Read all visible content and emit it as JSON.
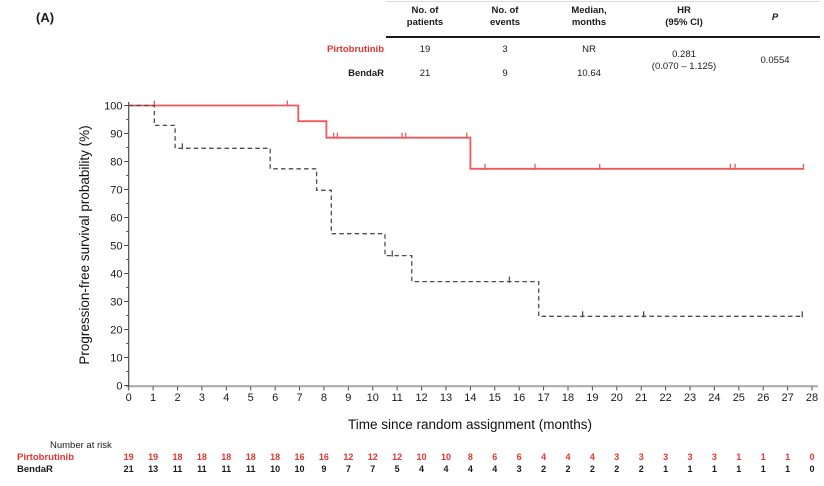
{
  "panel_label": "(A)",
  "colors": {
    "accent_red_text": "#e43434",
    "curve_red": "#f0595b",
    "curve_black": "#4d4d4d",
    "axis_gray": "#adadad",
    "tick_dark": "#4d4d4d"
  },
  "summary_table": {
    "columns": [
      {
        "line1": "No. of",
        "line2": "patients"
      },
      {
        "line1": "No. of",
        "line2": "events"
      },
      {
        "line1": "Median,",
        "line2": "months"
      },
      {
        "line1": "HR",
        "line2": "(95% CI)"
      },
      {
        "line1": "P",
        "line2": ""
      }
    ],
    "rows": [
      {
        "label": "Pirtobrutinib",
        "patients": "19",
        "events": "3",
        "median": "NR"
      },
      {
        "label": "BendaR",
        "patients": "21",
        "events": "9",
        "median": "10.64"
      }
    ],
    "hr_value": "0.281",
    "hr_ci": "(0.070 – 1.125)",
    "p_value": "0.0554"
  },
  "chart_data": {
    "type": "line",
    "subtype": "kaplan-meier-step",
    "title": "",
    "xlabel": "Time since random assignment (months)",
    "ylabel": "Progression-free survival probability (%)",
    "xlim": [
      0,
      28
    ],
    "ylim": [
      0,
      100
    ],
    "grid": false,
    "legend_position": "none",
    "x_ticks": [
      0,
      1,
      2,
      3,
      4,
      5,
      6,
      7,
      8,
      9,
      10,
      11,
      12,
      13,
      14,
      15,
      16,
      17,
      18,
      19,
      20,
      21,
      22,
      23,
      24,
      25,
      26,
      27,
      28
    ],
    "y_ticks": [
      0,
      10,
      20,
      30,
      40,
      50,
      60,
      70,
      80,
      90,
      100
    ],
    "y_minor_ticks": [
      5,
      15,
      25,
      35,
      45,
      55,
      65,
      75,
      85,
      95
    ],
    "series": [
      {
        "name": "Pirtobrutinib",
        "color": "#f0595b",
        "style": "solid",
        "steps": [
          [
            0,
            100
          ],
          [
            6.95,
            100
          ],
          [
            6.95,
            94.4
          ],
          [
            8.1,
            94.4
          ],
          [
            8.1,
            88.5
          ],
          [
            14.0,
            88.5
          ],
          [
            14.0,
            77.4
          ],
          [
            27.65,
            77.4
          ]
        ],
        "censors": [
          [
            1.05,
            100
          ],
          [
            6.5,
            100
          ],
          [
            8.4,
            88.5
          ],
          [
            8.55,
            88.5
          ],
          [
            11.2,
            88.5
          ],
          [
            11.35,
            88.5
          ],
          [
            13.85,
            88.5
          ],
          [
            14.6,
            77.4
          ],
          [
            16.65,
            77.4
          ],
          [
            19.3,
            77.4
          ],
          [
            24.65,
            77.4
          ],
          [
            24.85,
            77.4
          ],
          [
            27.65,
            77.4
          ]
        ]
      },
      {
        "name": "BendaR",
        "color": "#4d4d4d",
        "style": "dashed",
        "steps": [
          [
            0,
            100
          ],
          [
            1.05,
            100
          ],
          [
            1.05,
            92.9
          ],
          [
            1.9,
            92.9
          ],
          [
            1.9,
            84.7
          ],
          [
            5.8,
            84.7
          ],
          [
            5.8,
            77.4
          ],
          [
            7.7,
            77.4
          ],
          [
            7.7,
            69.7
          ],
          [
            8.3,
            69.7
          ],
          [
            8.3,
            54.2
          ],
          [
            10.5,
            54.2
          ],
          [
            10.5,
            46.4
          ],
          [
            11.6,
            46.4
          ],
          [
            11.6,
            37.1
          ],
          [
            16.8,
            37.1
          ],
          [
            16.8,
            24.7
          ],
          [
            27.6,
            24.7
          ]
        ],
        "censors": [
          [
            2.2,
            84.7
          ],
          [
            10.8,
            46.4
          ],
          [
            15.6,
            37.1
          ],
          [
            18.6,
            24.7
          ],
          [
            21.1,
            24.7
          ],
          [
            27.6,
            24.7
          ]
        ]
      }
    ]
  },
  "risk_table": {
    "title": "Number at risk",
    "rows": [
      {
        "label": "Pirtobrutinib",
        "color": "#e43434",
        "values": [
          "19",
          "19",
          "18",
          "18",
          "18",
          "18",
          "18",
          "16",
          "16",
          "12",
          "12",
          "12",
          "10",
          "10",
          "8",
          "6",
          "6",
          "4",
          "4",
          "4",
          "3",
          "3",
          "3",
          "3",
          "3",
          "1",
          "1",
          "1",
          "0"
        ]
      },
      {
        "label": "BendaR",
        "color": "#1a1a1a",
        "values": [
          "21",
          "13",
          "11",
          "11",
          "11",
          "11",
          "10",
          "10",
          "9",
          "7",
          "7",
          "5",
          "4",
          "4",
          "4",
          "4",
          "3",
          "2",
          "2",
          "2",
          "2",
          "2",
          "1",
          "1",
          "1",
          "1",
          "1",
          "1",
          "0"
        ]
      }
    ]
  }
}
